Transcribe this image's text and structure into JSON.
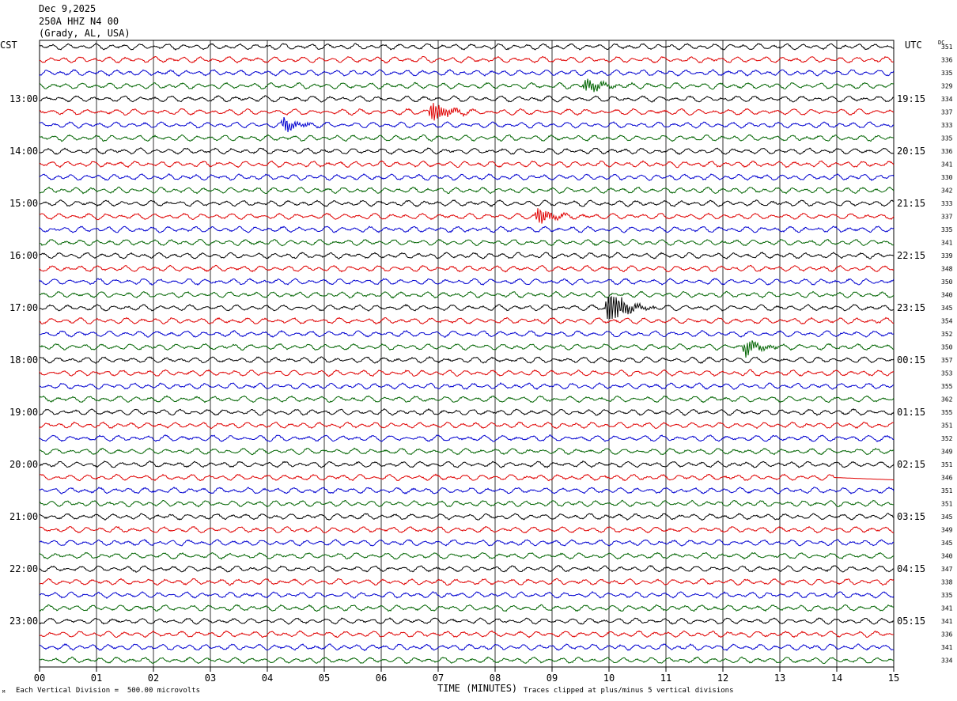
{
  "header": {
    "date": "Dec 9,2025",
    "station": "250A HHZ N4 00",
    "location": "(Grady, AL, USA)"
  },
  "axis_labels": {
    "left_tz": "CST",
    "right_tz": "UTC",
    "dc": "DC",
    "xlabel": "TIME (MINUTES)"
  },
  "footer": {
    "scale_note": "Each Vertical Division =  500.00 microvolts",
    "clip_note": "Traces clipped at plus/minus 5 vertical divisions",
    "corner_mark": "ᴹ"
  },
  "chart_data": {
    "type": "line",
    "title": "",
    "xlabel": "TIME (MINUTES)",
    "xlim": [
      0,
      15
    ],
    "x_ticks": [
      "00",
      "01",
      "02",
      "03",
      "04",
      "05",
      "06",
      "07",
      "08",
      "09",
      "10",
      "11",
      "12",
      "13",
      "14",
      "15"
    ],
    "left_time_labels": [
      "13:00",
      "14:00",
      "15:00",
      "16:00",
      "17:00",
      "18:00",
      "19:00",
      "20:00",
      "21:00",
      "22:00",
      "23:00"
    ],
    "right_time_labels": [
      "19:15",
      "20:15",
      "21:15",
      "22:15",
      "23:15",
      "00:15",
      "01:15",
      "02:15",
      "03:15",
      "04:15",
      "05:15"
    ],
    "trace_colors": [
      "#000000",
      "#e00000",
      "#0000d0",
      "#006400"
    ],
    "dc_offsets": [
      351,
      336,
      335,
      329,
      334,
      337,
      333,
      335,
      336,
      341,
      330,
      342,
      333,
      337,
      335,
      341,
      339,
      348,
      350,
      340,
      345,
      354,
      352,
      350,
      357,
      353,
      355,
      362,
      355,
      351,
      352,
      349,
      351,
      346,
      351,
      351,
      345,
      349,
      345,
      340,
      347,
      338,
      335,
      341,
      341,
      336,
      341,
      334
    ],
    "trace_count": 48,
    "events": [
      {
        "trace": 3,
        "minute": 9.6,
        "amplitude": 0.9
      },
      {
        "trace": 5,
        "minute": 6.9,
        "amplitude": 1.3
      },
      {
        "trace": 6,
        "minute": 4.3,
        "amplitude": 0.8
      },
      {
        "trace": 13,
        "minute": 8.75,
        "amplitude": 1.0
      },
      {
        "trace": 20,
        "minute": 10.0,
        "amplitude": 2.4
      },
      {
        "trace": 23,
        "minute": 12.4,
        "amplitude": 1.0
      }
    ],
    "flat_segments": [
      {
        "trace": 33,
        "start_minute": 13.95,
        "end_minute": 15
      }
    ]
  }
}
